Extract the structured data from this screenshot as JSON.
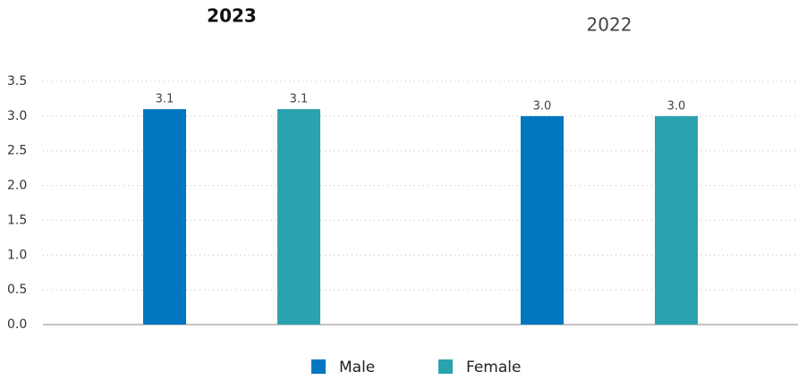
{
  "chart_data": {
    "type": "bar",
    "categories": [
      "2023",
      "2022"
    ],
    "series": [
      {
        "name": "Male",
        "color": "#0077c0",
        "values": [
          3.1,
          3.0
        ],
        "value_labels": [
          "3.1",
          "3.0"
        ]
      },
      {
        "name": "Female",
        "color": "#2aa3ae",
        "values": [
          3.1,
          3.0
        ],
        "value_labels": [
          "3.1",
          "3.0"
        ]
      }
    ],
    "ylim": [
      0,
      3.5
    ],
    "yticks": [
      {
        "value": 0,
        "label": "0.0"
      },
      0.5,
      {
        "value": 1,
        "label": "1.0"
      },
      1.5,
      {
        "value": 2,
        "label": "2.0"
      },
      2.5,
      {
        "value": 3,
        "label": "3.0"
      },
      3.5
    ],
    "grid": true
  }
}
